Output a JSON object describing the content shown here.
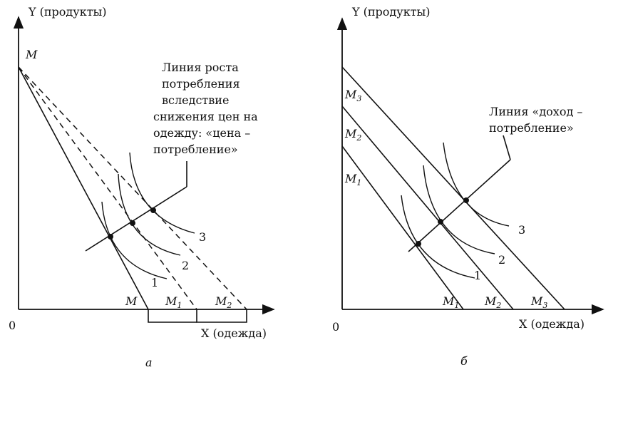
{
  "panel_a": {
    "y_axis_label": "Y (продукты)",
    "x_axis_label": "X (одежда)",
    "origin_label": "0",
    "top_label": "M",
    "x_intercept_labels": {
      "m": "M",
      "m1_base": "M",
      "m1_sub": "1",
      "m2_base": "M",
      "m2_sub": "2"
    },
    "annotation_lines": [
      "Линия роста",
      "потребления",
      "вследствие",
      "снижения цен на",
      "одежду: «цена –",
      "потребление»"
    ],
    "curve_labels": [
      "1",
      "2",
      "3"
    ],
    "caption": "а"
  },
  "panel_b": {
    "y_axis_label": "Y (продукты)",
    "x_axis_label": "X (одежда)",
    "origin_label": "0",
    "y_intercept_labels": [
      {
        "base": "M",
        "sub": "3"
      },
      {
        "base": "M",
        "sub": "2"
      },
      {
        "base": "M",
        "sub": "1"
      }
    ],
    "x_intercept_labels": [
      {
        "base": "M",
        "sub": "1"
      },
      {
        "base": "M",
        "sub": "2"
      },
      {
        "base": "M",
        "sub": "3"
      }
    ],
    "annotation_lines": [
      "Линия «доход –",
      "потребление»"
    ],
    "curve_labels": [
      "1",
      "2",
      "3"
    ],
    "caption": "б"
  }
}
